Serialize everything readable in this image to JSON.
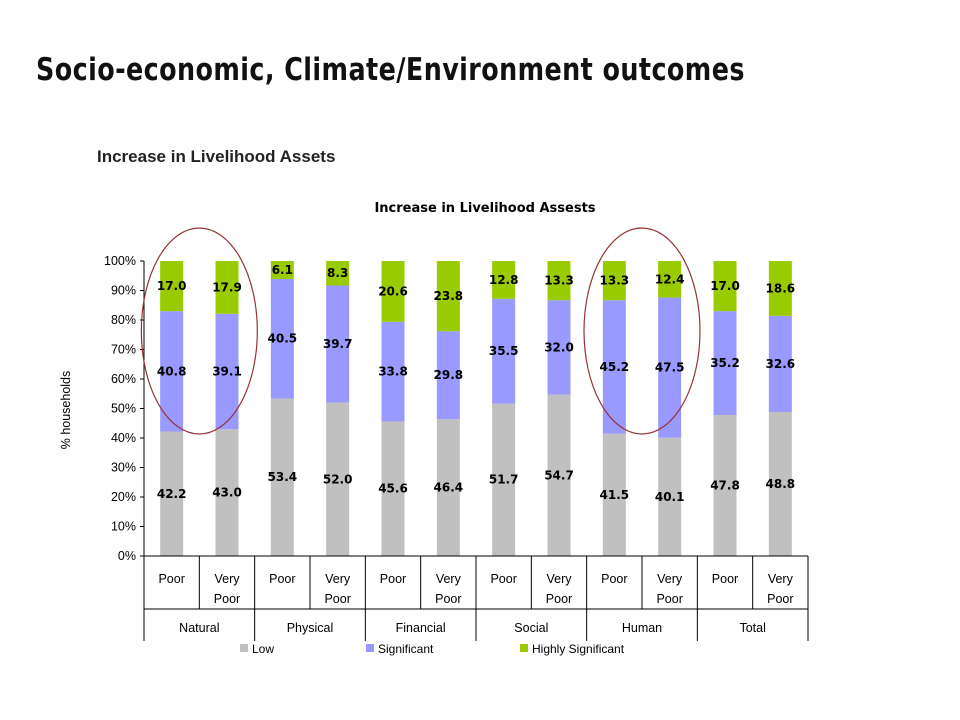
{
  "slide": {
    "title": "Socio-economic, Climate/Environment outcomes",
    "subtitle": "Increase in Livelihood Assets"
  },
  "chart_data": {
    "type": "bar",
    "stacked": true,
    "percent_stacked": true,
    "title": "Increase in Livelihood Assests",
    "ylabel": "% households",
    "ylim": [
      0,
      100
    ],
    "yticks": [
      "0%",
      "10%",
      "20%",
      "30%",
      "40%",
      "50%",
      "60%",
      "70%",
      "80%",
      "90%",
      "100%"
    ],
    "categories": [
      [
        "Poor"
      ],
      [
        "Very",
        "Poor"
      ],
      [
        "Poor"
      ],
      [
        "Very",
        "Poor"
      ],
      [
        "Poor"
      ],
      [
        "Very",
        "Poor"
      ],
      [
        "Poor"
      ],
      [
        "Very",
        "Poor"
      ],
      [
        "Poor"
      ],
      [
        "Very",
        "Poor"
      ],
      [
        "Poor"
      ],
      [
        "Very",
        "Poor"
      ]
    ],
    "groups": [
      "Natural",
      "Physical",
      "Financial",
      "Social",
      "Human",
      "Total"
    ],
    "series": [
      {
        "name": "Low",
        "color": "#c0c0c0",
        "values": [
          42.2,
          43.0,
          53.4,
          52.0,
          45.6,
          46.4,
          51.7,
          54.7,
          41.5,
          40.1,
          47.8,
          48.8
        ],
        "labels": [
          "42.2",
          "43.0",
          "53.4",
          "52.0",
          "45.6",
          "46.4",
          "51.7",
          "54.7",
          "41.5",
          "40.1",
          "47.8",
          "48.8"
        ]
      },
      {
        "name": "Significant",
        "color": "#9999ff",
        "values": [
          40.8,
          39.1,
          40.5,
          39.7,
          33.8,
          29.8,
          35.5,
          32.0,
          45.2,
          47.5,
          35.2,
          32.6
        ],
        "labels": [
          "40.8",
          "39.1",
          "40.5",
          "39.7",
          "33.8",
          "29.8",
          "35.5",
          "32.0",
          "45.2",
          "47.5",
          "35.2",
          "32.6"
        ]
      },
      {
        "name": "Highly Significant",
        "color": "#99cc00",
        "values": [
          17.0,
          17.9,
          6.1,
          8.3,
          20.6,
          23.8,
          12.8,
          13.3,
          13.3,
          12.4,
          17.0,
          18.6
        ],
        "labels": [
          "17.0",
          "17.9",
          "6.1",
          "8.3",
          "20.6",
          "23.8",
          "12.8",
          "13.3",
          "13.3",
          "12.4",
          "17.0",
          "18.6"
        ]
      }
    ],
    "legend_position": "bottom",
    "grid": false,
    "annotations": [
      {
        "type": "ellipse",
        "color": "#993333",
        "group": "Natural"
      },
      {
        "type": "ellipse",
        "color": "#993333",
        "group": "Human"
      }
    ]
  }
}
